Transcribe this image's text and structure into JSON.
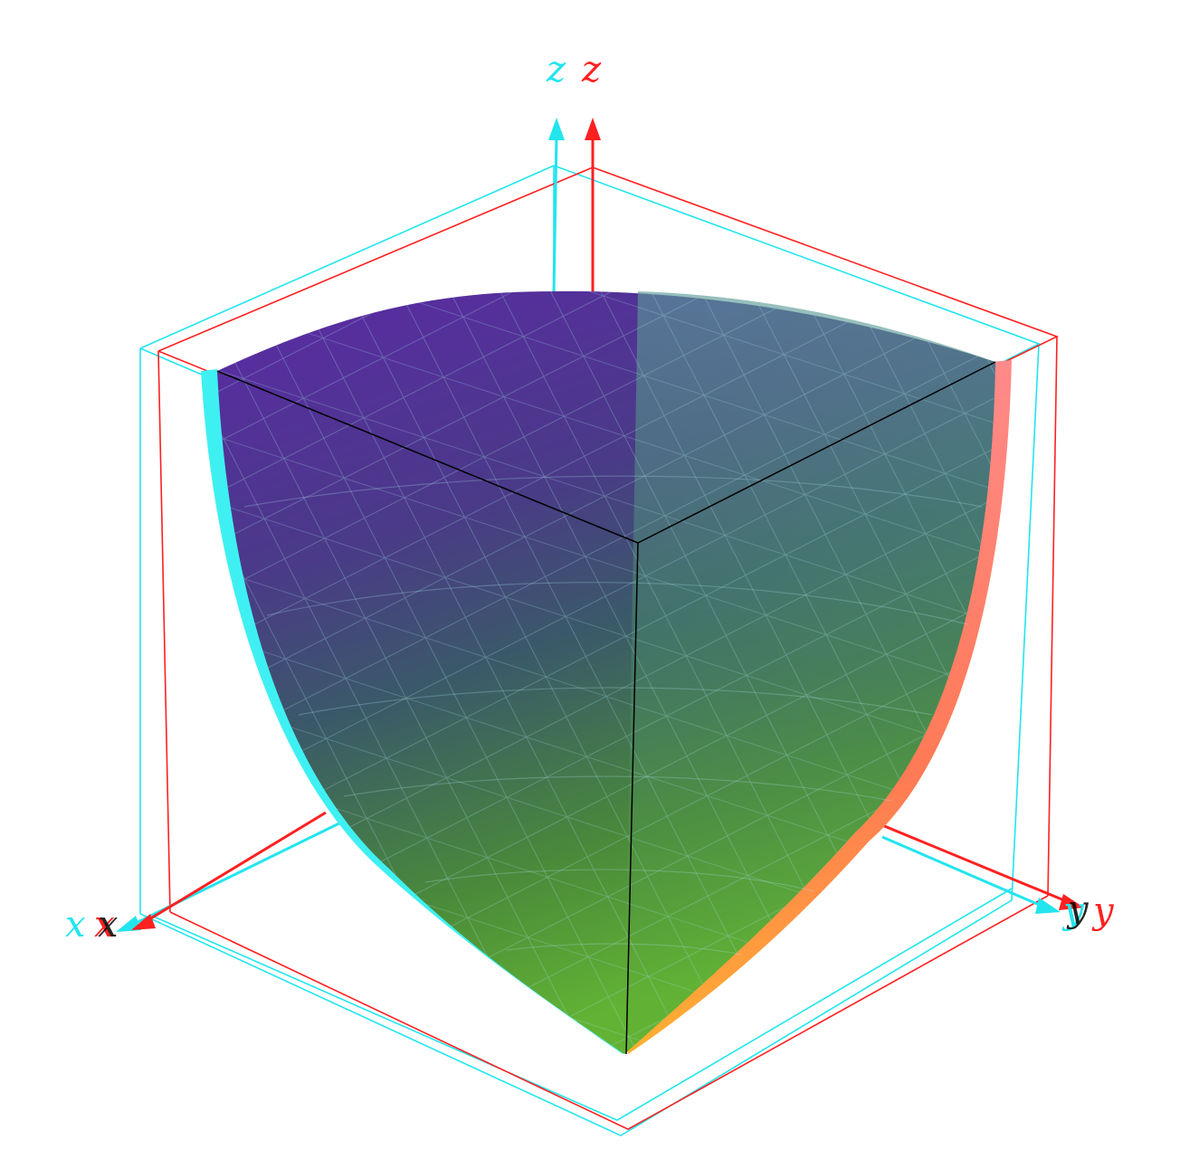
{
  "figure": {
    "description_type": "anaglyph 3D surface plot",
    "axis_labels": {
      "x": "x",
      "y": "y",
      "z": "z"
    },
    "colors": {
      "left_eye": "#ff0000",
      "right_eye": "#00ffff",
      "surface_top": "#5a2aa8",
      "surface_mid": "#3a6a78",
      "surface_bottom": "#5fb030",
      "edge_glow_right": "#ff8080",
      "edge_glow_bottom_right": "#ffa030",
      "inner_edges": "#000000"
    }
  }
}
